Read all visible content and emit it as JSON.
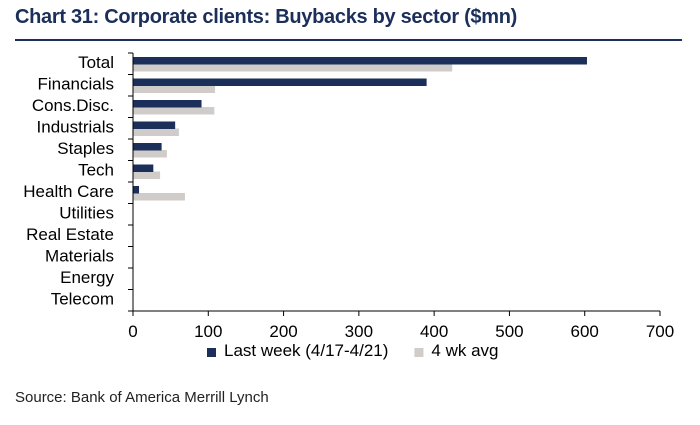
{
  "title": "Chart 31: Corporate clients: Buybacks by sector ($mn)",
  "source": "Source: Bank of America Merrill Lynch",
  "colors": {
    "last_week": "#1b2f5a",
    "avg": "#d0ccc9",
    "axis": "#000000",
    "title": "#1b2f5a"
  },
  "chart_data": {
    "type": "bar",
    "orientation": "horizontal",
    "title": "Chart 31: Corporate clients: Buybacks by sector ($mn)",
    "categories": [
      "Total",
      "Financials",
      "Cons.Disc.",
      "Industrials",
      "Staples",
      "Tech",
      "Health Care",
      "Utilities",
      "Real Estate",
      "Materials",
      "Energy",
      "Telecom"
    ],
    "series": [
      {
        "name": "Last week (4/17-4/21)",
        "values": [
          603,
          390,
          91,
          56,
          38,
          27,
          8,
          0,
          0,
          0,
          0,
          0
        ]
      },
      {
        "name": "4 wk avg",
        "values": [
          424,
          109,
          108,
          61,
          45,
          36,
          69,
          0,
          0,
          0,
          0,
          0
        ]
      }
    ],
    "xlim": [
      0,
      700
    ],
    "xticks": [
      0,
      100,
      200,
      300,
      400,
      500,
      600,
      700
    ],
    "grid": false,
    "legend_position": "bottom"
  }
}
